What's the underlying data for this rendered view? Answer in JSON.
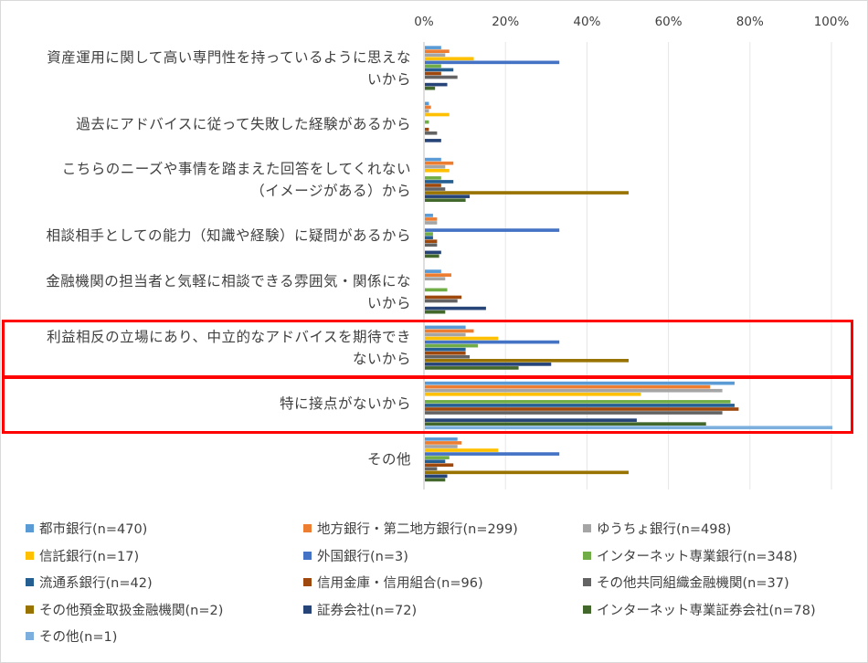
{
  "chart_data": {
    "type": "bar",
    "orientation": "horizontal",
    "title": "",
    "xlabel": "",
    "ylabel": "",
    "xlim": [
      0,
      100
    ],
    "x_ticks": [
      "0%",
      "20%",
      "40%",
      "60%",
      "80%",
      "100%"
    ],
    "grid": true,
    "legend_position": "bottom",
    "categories": [
      [
        "資産運用に関して高い専門性を持っているように思えな",
        "いから"
      ],
      [
        "過去にアドバイスに従って失敗した経験があるから"
      ],
      [
        "こちらのニーズや事情を踏まえた回答をしてくれない",
        "（イメージがある）から"
      ],
      [
        "相談相手としての能力（知識や経験）に疑問があるから"
      ],
      [
        "金融機関の担当者と気軽に相談できる雰囲気・関係にな",
        "いから"
      ],
      [
        "利益相反の立場にあり、中立的なアドバイスを期待でき",
        "ないから"
      ],
      [
        "特に接点がないから"
      ],
      [
        "その他"
      ]
    ],
    "highlighted_categories": [
      5,
      6
    ],
    "series": [
      {
        "name": "都市銀行(n=470)",
        "color": "#5b9bd5",
        "values": [
          4,
          1,
          4,
          2,
          4,
          10,
          76,
          8
        ]
      },
      {
        "name": "地方銀行・第二地方銀行(n=299)",
        "color": "#ed7d31",
        "values": [
          6,
          1.5,
          7,
          3,
          6.5,
          12,
          70,
          9
        ]
      },
      {
        "name": "ゆうちょ銀行(n=498)",
        "color": "#a5a5a5",
        "values": [
          5,
          1,
          5,
          3,
          5,
          10,
          73,
          8
        ]
      },
      {
        "name": "信託銀行(n=17)",
        "color": "#ffc000",
        "values": [
          12,
          6,
          6,
          0,
          0,
          18,
          53,
          18
        ]
      },
      {
        "name": "外国銀行(n=3)",
        "color": "#4472c4",
        "values": [
          33,
          0,
          0,
          33,
          0,
          33,
          0,
          33
        ]
      },
      {
        "name": "インターネット専業銀行(n=348)",
        "color": "#70ad47",
        "values": [
          4,
          1,
          4,
          2,
          5.5,
          13,
          75,
          6
        ]
      },
      {
        "name": "流通系銀行(n=42)",
        "color": "#255e91",
        "values": [
          7,
          0,
          7,
          2,
          0,
          10,
          76,
          5
        ]
      },
      {
        "name": "信用金庫・信用組合(n=96)",
        "color": "#9e480e",
        "values": [
          4,
          1,
          4,
          3,
          9,
          10,
          77,
          7
        ]
      },
      {
        "name": "その他共同組織金融機関(n=37)",
        "color": "#636363",
        "values": [
          8,
          3,
          5,
          3,
          8,
          11,
          73,
          3
        ]
      },
      {
        "name": "その他預金取扱金融機関(n=2)",
        "color": "#997300",
        "values": [
          0,
          0,
          50,
          0,
          0,
          50,
          0,
          50
        ]
      },
      {
        "name": "証券会社(n=72)",
        "color": "#264478",
        "values": [
          5.5,
          4,
          11,
          4,
          15,
          31,
          52,
          5.5
        ]
      },
      {
        "name": "インターネット専業証券会社(n=78)",
        "color": "#43682b",
        "values": [
          2.5,
          0,
          10,
          3.5,
          5,
          23,
          69,
          5
        ]
      },
      {
        "name": "その他(n=1)",
        "color": "#7cafdd",
        "values": [
          0,
          0,
          0,
          0,
          0,
          0,
          100,
          0
        ]
      }
    ]
  }
}
